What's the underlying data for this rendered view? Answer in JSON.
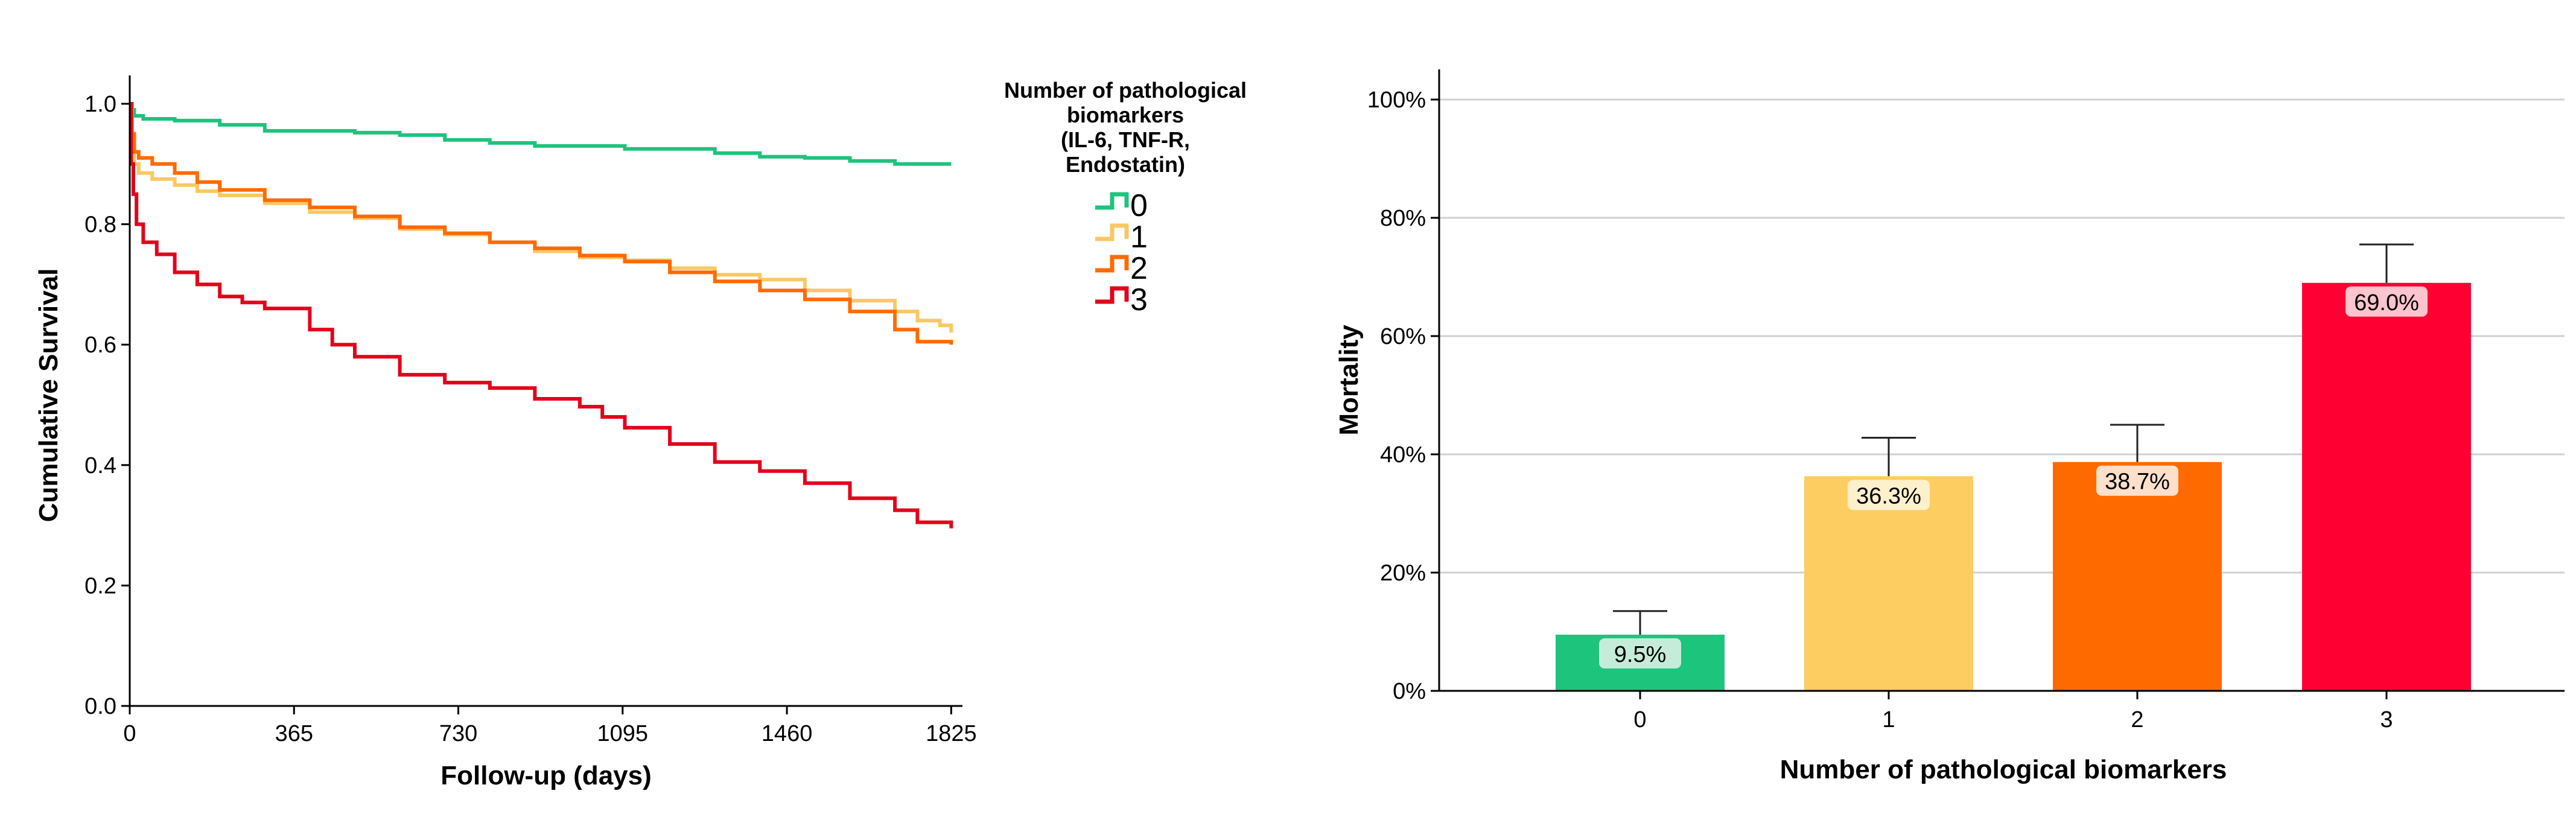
{
  "chart_data": [
    {
      "type": "line",
      "subtype": "kaplan-meier",
      "title": "",
      "xlabel": "Follow-up (days)",
      "ylabel": "Cumulative Survival",
      "xlim": [
        0,
        1850
      ],
      "ylim": [
        0,
        1.0
      ],
      "x_ticks": [
        0,
        365,
        730,
        1095,
        1460,
        1825
      ],
      "x_tick_labels": [
        "0",
        "365",
        "730",
        "1095",
        "1460",
        "1825"
      ],
      "y_ticks": [
        0,
        0.2,
        0.4,
        0.6,
        0.8,
        1.0
      ],
      "y_tick_labels": [
        "0.0",
        "0.2",
        "0.4",
        "0.6",
        "0.8",
        "1.0"
      ],
      "grid": false,
      "legend": {
        "title": "Number of pathological biomarkers (IL-6, TNF-R, Endostatin)",
        "title_lines": [
          "Number of pathological",
          "biomarkers",
          "(IL-6, TNF-R,",
          "Endostatin)"
        ],
        "position": "right"
      },
      "series": [
        {
          "name": "0",
          "color": "#1dc47c",
          "points": [
            [
              0,
              1.0
            ],
            [
              5,
              0.99
            ],
            [
              10,
              0.98
            ],
            [
              30,
              0.975
            ],
            [
              100,
              0.972
            ],
            [
              200,
              0.965
            ],
            [
              300,
              0.955
            ],
            [
              400,
              0.955
            ],
            [
              500,
              0.952
            ],
            [
              600,
              0.948
            ],
            [
              700,
              0.94
            ],
            [
              800,
              0.935
            ],
            [
              900,
              0.93
            ],
            [
              1000,
              0.93
            ],
            [
              1100,
              0.925
            ],
            [
              1200,
              0.925
            ],
            [
              1300,
              0.918
            ],
            [
              1400,
              0.912
            ],
            [
              1500,
              0.91
            ],
            [
              1600,
              0.905
            ],
            [
              1700,
              0.9
            ],
            [
              1825,
              0.9
            ]
          ]
        },
        {
          "name": "1",
          "color": "#fac864",
          "points": [
            [
              0,
              1.0
            ],
            [
              5,
              0.95
            ],
            [
              10,
              0.9
            ],
            [
              20,
              0.885
            ],
            [
              50,
              0.875
            ],
            [
              100,
              0.865
            ],
            [
              150,
              0.855
            ],
            [
              200,
              0.848
            ],
            [
              300,
              0.835
            ],
            [
              400,
              0.82
            ],
            [
              500,
              0.81
            ],
            [
              600,
              0.792
            ],
            [
              700,
              0.783
            ],
            [
              800,
              0.77
            ],
            [
              900,
              0.755
            ],
            [
              1000,
              0.745
            ],
            [
              1100,
              0.74
            ],
            [
              1200,
              0.727
            ],
            [
              1300,
              0.716
            ],
            [
              1400,
              0.708
            ],
            [
              1500,
              0.69
            ],
            [
              1600,
              0.673
            ],
            [
              1700,
              0.655
            ],
            [
              1750,
              0.64
            ],
            [
              1800,
              0.632
            ],
            [
              1825,
              0.62
            ]
          ]
        },
        {
          "name": "2",
          "color": "#ff6a00",
          "points": [
            [
              0,
              1.0
            ],
            [
              5,
              0.95
            ],
            [
              10,
              0.92
            ],
            [
              20,
              0.91
            ],
            [
              50,
              0.9
            ],
            [
              100,
              0.885
            ],
            [
              150,
              0.87
            ],
            [
              200,
              0.857
            ],
            [
              300,
              0.84
            ],
            [
              400,
              0.828
            ],
            [
              500,
              0.813
            ],
            [
              600,
              0.795
            ],
            [
              700,
              0.785
            ],
            [
              800,
              0.77
            ],
            [
              900,
              0.76
            ],
            [
              1000,
              0.748
            ],
            [
              1100,
              0.738
            ],
            [
              1200,
              0.72
            ],
            [
              1300,
              0.705
            ],
            [
              1400,
              0.69
            ],
            [
              1500,
              0.675
            ],
            [
              1600,
              0.655
            ],
            [
              1700,
              0.625
            ],
            [
              1750,
              0.605
            ],
            [
              1825,
              0.6
            ]
          ]
        },
        {
          "name": "3",
          "color": "#e3001b",
          "points": [
            [
              0,
              1.0
            ],
            [
              3,
              0.9
            ],
            [
              8,
              0.85
            ],
            [
              15,
              0.8
            ],
            [
              30,
              0.77
            ],
            [
              60,
              0.75
            ],
            [
              100,
              0.72
            ],
            [
              150,
              0.7
            ],
            [
              200,
              0.68
            ],
            [
              250,
              0.67
            ],
            [
              300,
              0.66
            ],
            [
              400,
              0.625
            ],
            [
              450,
              0.6
            ],
            [
              500,
              0.58
            ],
            [
              600,
              0.55
            ],
            [
              700,
              0.537
            ],
            [
              800,
              0.528
            ],
            [
              900,
              0.51
            ],
            [
              1000,
              0.497
            ],
            [
              1050,
              0.48
            ],
            [
              1100,
              0.462
            ],
            [
              1200,
              0.435
            ],
            [
              1300,
              0.405
            ],
            [
              1400,
              0.39
            ],
            [
              1500,
              0.37
            ],
            [
              1600,
              0.345
            ],
            [
              1700,
              0.325
            ],
            [
              1750,
              0.305
            ],
            [
              1825,
              0.295
            ]
          ]
        }
      ]
    },
    {
      "type": "bar",
      "title": "",
      "xlabel": "Number of pathological biomarkers",
      "ylabel": "Mortality",
      "categories": [
        "0",
        "1",
        "2",
        "3"
      ],
      "values": [
        9.5,
        36.3,
        38.7,
        69.0
      ],
      "value_labels": [
        "9.5%",
        "36.3%",
        "38.7%",
        "69.0%"
      ],
      "error_upper": [
        13.5,
        42.8,
        45.0,
        75.5
      ],
      "colors": [
        "#1dc47c",
        "#fdcd62",
        "#ff6a00",
        "#ff0033"
      ],
      "label_bg_colors": [
        "#c5ecd9",
        "#fff0cc",
        "#fde0cc",
        "#fcc4cc"
      ],
      "ylim": [
        0,
        100
      ],
      "y_ticks": [
        0,
        20,
        40,
        60,
        80,
        100
      ],
      "y_tick_labels": [
        "0%",
        "20%",
        "40%",
        "60%",
        "80%",
        "100%"
      ],
      "grid": true
    }
  ]
}
